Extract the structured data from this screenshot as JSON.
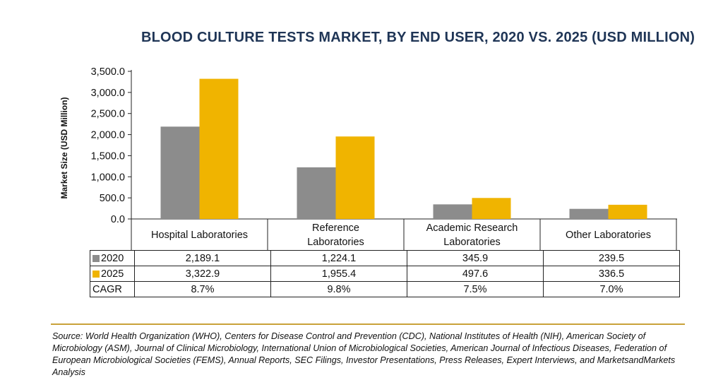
{
  "chart_data": {
    "type": "bar",
    "title": "BLOOD CULTURE TESTS MARKET, BY END USER, 2020 VS. 2025 (USD MILLION)",
    "ylabel": "Market Size (USD Million)",
    "xlabel": "",
    "ylim": [
      0,
      3500
    ],
    "yticks": [
      "0.0",
      "500.0",
      "1,000.0",
      "1,500.0",
      "2,000.0",
      "2,500.0",
      "3,000.0",
      "3,500.0"
    ],
    "categories": [
      [
        "Hospital Laboratories"
      ],
      [
        "Reference",
        "Laboratories"
      ],
      [
        "Academic Research",
        "Laboratories"
      ],
      [
        "Other Laboratories"
      ]
    ],
    "series": [
      {
        "name": "2020",
        "color": "#8c8c8c",
        "values": [
          2189.1,
          1224.1,
          345.9,
          239.5
        ],
        "labels": [
          "2,189.1",
          "1,224.1",
          "345.9",
          "239.5"
        ]
      },
      {
        "name": "2025",
        "color": "#f0b400",
        "values": [
          3322.9,
          1955.4,
          497.6,
          336.5
        ],
        "labels": [
          "3,322.9",
          "1,955.4",
          "497.6",
          "336.5"
        ]
      }
    ],
    "extra_rows": [
      {
        "name": "CAGR",
        "labels": [
          "8.7%",
          "9.8%",
          "7.5%",
          "7.0%"
        ]
      }
    ],
    "grid": false,
    "legend": "table"
  },
  "source_text": "Source: World Health Organization (WHO), Centers for Disease Control and Prevention (CDC), National Institutes of Health (NIH), American Society of Microbiology (ASM), Journal of Clinical Microbiology, International Union of Microbiological Societies, American Journal of Infectious Diseases, Federation of European Microbiological Societies (FEMS), Annual Reports, SEC Filings, Investor Presentations, Press Releases, Expert Interviews, and MarketsandMarkets Analysis"
}
